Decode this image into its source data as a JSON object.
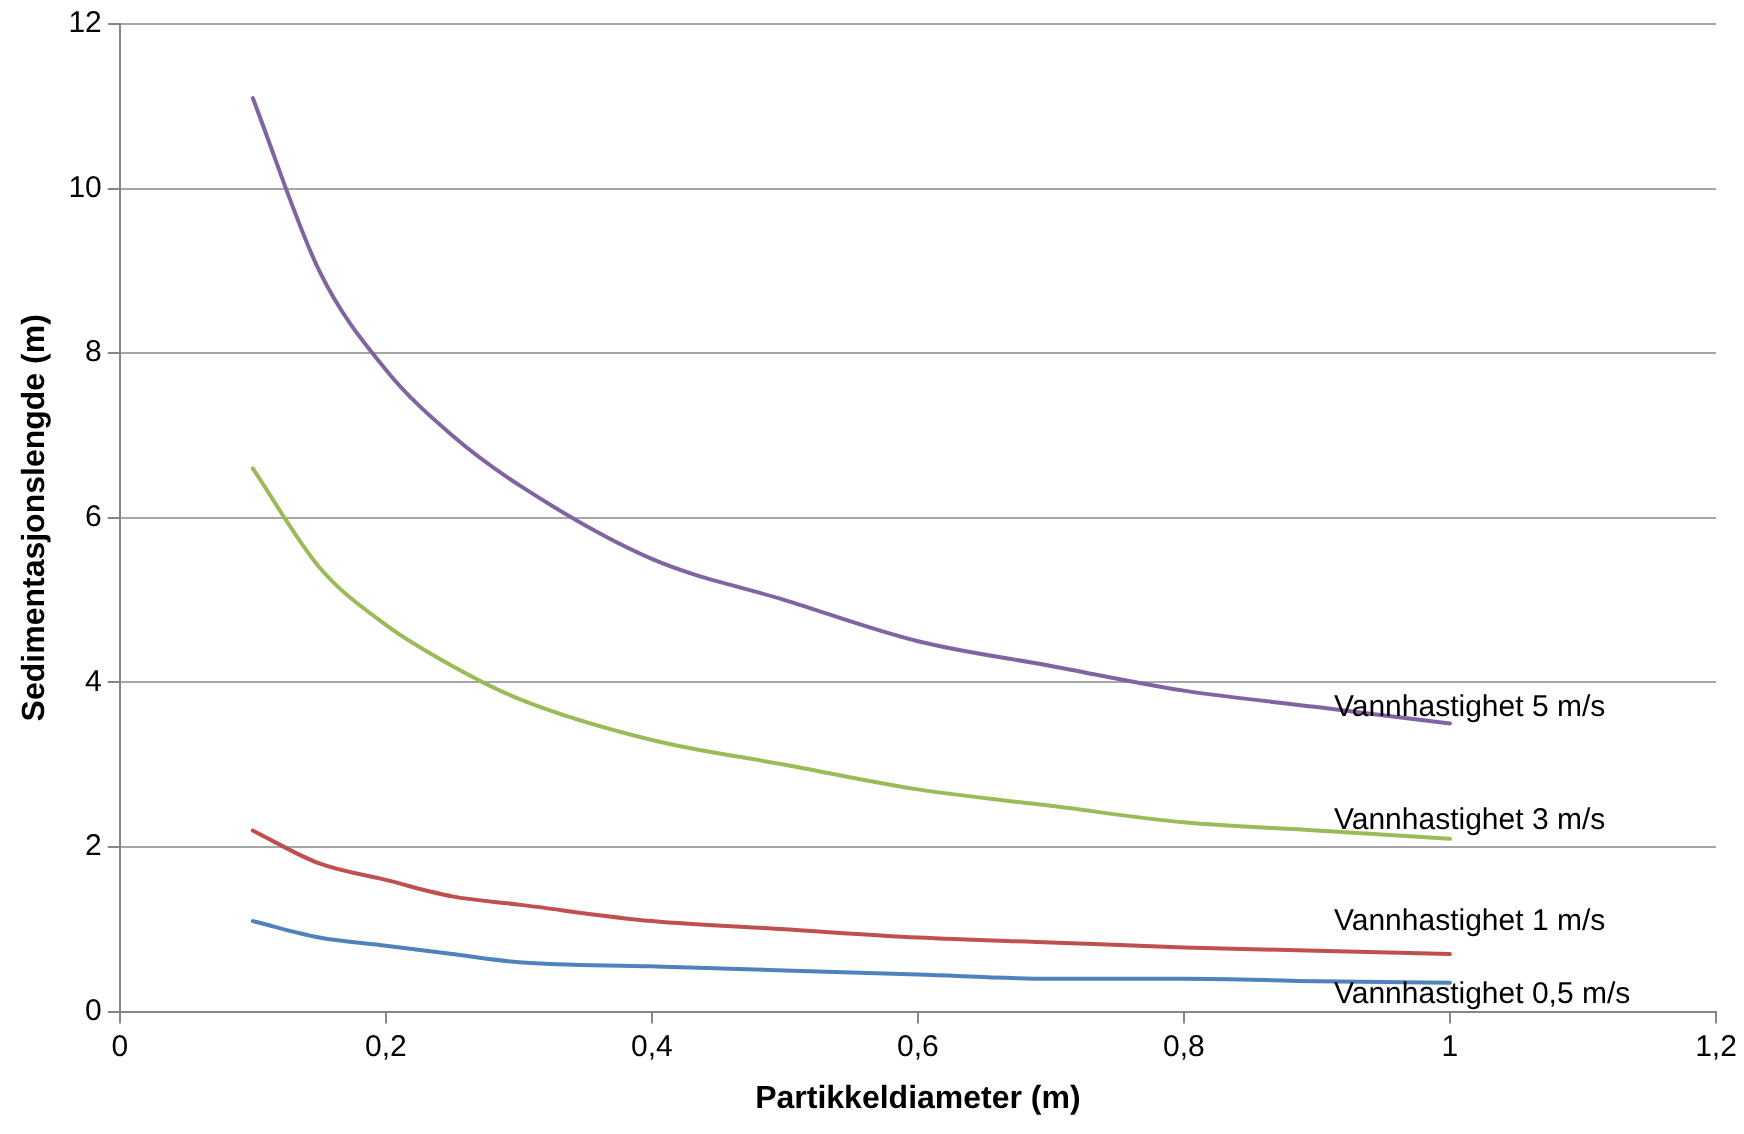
{
  "chart_data": {
    "type": "line",
    "xlabel": "Partikkeldiameter (m)",
    "ylabel": "Sedimentasjonslengde (m)",
    "xlim": [
      0,
      1.2
    ],
    "xticks": [
      0,
      {
        "value": 0.2,
        "label": "0,2"
      },
      {
        "value": 0.4,
        "label": "0,4"
      },
      {
        "value": 0.6,
        "label": "0,6"
      },
      {
        "value": 0.8,
        "label": "0,8"
      },
      1,
      {
        "value": 1.2,
        "label": "1,2"
      }
    ],
    "ylim": [
      0,
      12
    ],
    "yticks": [
      0,
      2,
      4,
      6,
      8,
      10,
      12
    ],
    "grid": "y",
    "legend": false,
    "marker": "none",
    "line_style": "solid",
    "x": [
      0.1,
      0.15,
      0.2,
      0.25,
      0.3,
      0.4,
      0.5,
      0.6,
      0.7,
      0.8,
      0.9,
      1.0
    ],
    "series": [
      {
        "name": "Vannhastighet 5 m/s",
        "color": "#8064a2",
        "values": [
          11.1,
          9.0,
          7.8,
          7.0,
          6.4,
          5.5,
          5.0,
          4.5,
          4.2,
          3.9,
          3.7,
          3.5
        ]
      },
      {
        "name": "Vannhastighet 3 m/s",
        "color": "#9bbb59",
        "values": [
          6.6,
          5.4,
          4.7,
          4.2,
          3.8,
          3.3,
          3.0,
          2.7,
          2.5,
          2.3,
          2.2,
          2.1
        ]
      },
      {
        "name": "Vannhastighet 1 m/s",
        "color": "#c0504d",
        "values": [
          2.2,
          1.8,
          1.6,
          1.4,
          1.3,
          1.1,
          1.0,
          0.9,
          0.84,
          0.78,
          0.74,
          0.7
        ]
      },
      {
        "name": "Vannhastighet 0,5 m/s",
        "color": "#4f81bd",
        "values": [
          1.1,
          0.9,
          0.8,
          0.7,
          0.6,
          0.55,
          0.5,
          0.45,
          0.4,
          0.4,
          0.37,
          0.35
        ]
      }
    ]
  }
}
